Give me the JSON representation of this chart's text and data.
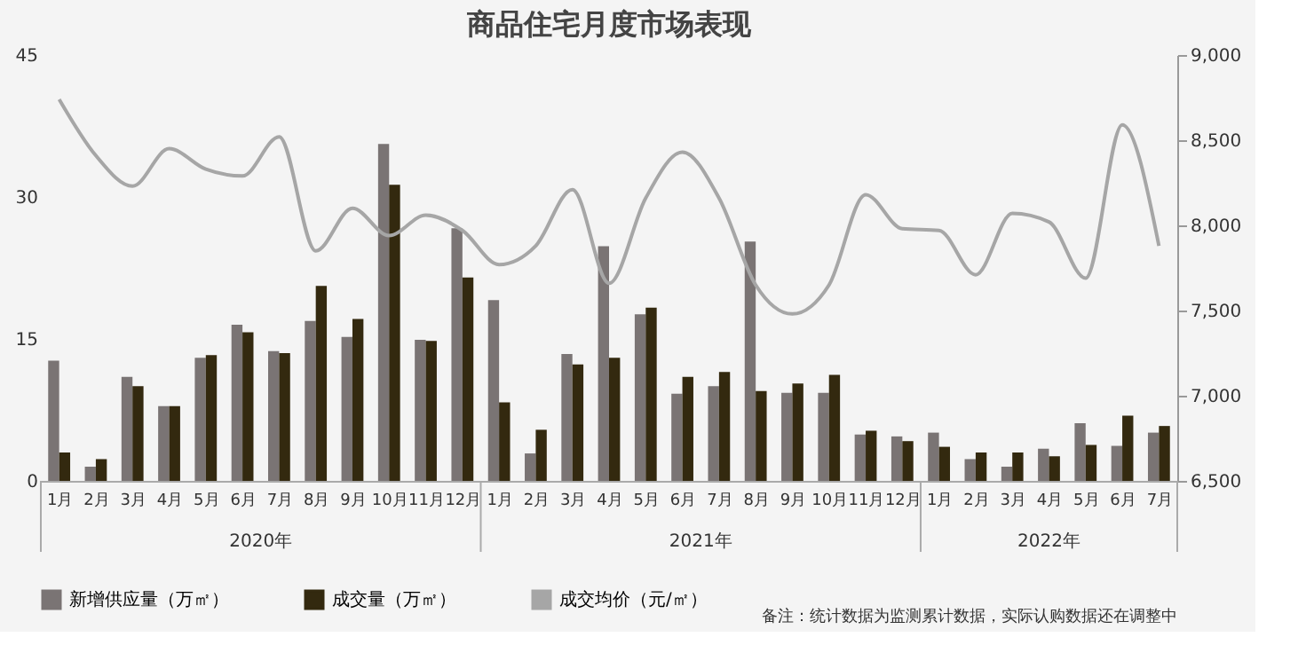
{
  "chart_data": {
    "type": "bar",
    "title": "商品住宅月度市场表现",
    "categories": [
      "1月",
      "2月",
      "3月",
      "4月",
      "5月",
      "6月",
      "7月",
      "8月",
      "9月",
      "10月",
      "11月",
      "12月",
      "1月",
      "2月",
      "3月",
      "4月",
      "5月",
      "6月",
      "7月",
      "8月",
      "9月",
      "10月",
      "11月",
      "12月",
      "1月",
      "2月",
      "3月",
      "4月",
      "5月",
      "6月",
      "7月"
    ],
    "series": [
      {
        "name": "新增供应量（万㎡）",
        "color": "#7a7474",
        "values": [
          12.7,
          1.5,
          11.0,
          7.9,
          13.0,
          16.5,
          13.7,
          16.9,
          15.2,
          35.6,
          14.9,
          26.7,
          19.1,
          2.9,
          13.4,
          24.8,
          17.6,
          9.2,
          10.0,
          25.3,
          9.3,
          9.3,
          4.9,
          4.7,
          5.1,
          2.3,
          1.5,
          3.4,
          6.1,
          3.7,
          5.1
        ]
      },
      {
        "name": "成交量（万㎡）",
        "color": "#33290f",
        "values": [
          3.0,
          2.3,
          10.0,
          7.9,
          13.3,
          15.7,
          13.5,
          20.6,
          17.1,
          31.3,
          14.8,
          21.5,
          8.3,
          5.4,
          12.3,
          13.0,
          18.3,
          11.0,
          11.5,
          9.5,
          10.3,
          11.2,
          5.3,
          4.2,
          3.6,
          3.0,
          3.0,
          2.6,
          3.8,
          6.9,
          5.8
        ]
      },
      {
        "name": "成交均价（元/㎡）",
        "type": "line",
        "axis": "y2",
        "color": "#a6a6a6",
        "values": [
          8740,
          8410,
          8230,
          8450,
          8330,
          8290,
          8520,
          7850,
          8100,
          7940,
          8060,
          7970,
          7770,
          7880,
          8210,
          7660,
          8160,
          8430,
          8160,
          7650,
          7480,
          7650,
          8180,
          7980,
          7970,
          7710,
          8070,
          8020,
          7690,
          8590,
          7880
        ]
      }
    ],
    "ylim": [
      0,
      45
    ],
    "yticks": [
      0,
      15,
      30,
      45
    ],
    "y2lim": [
      6500,
      9000
    ],
    "y2ticks": [
      {
        "value": 6500,
        "label": "6,500"
      },
      {
        "value": 7000,
        "label": "7,000"
      },
      {
        "value": 7500,
        "label": "7,500"
      },
      {
        "value": 8000,
        "label": "8,000"
      },
      {
        "value": 8500,
        "label": "8,500"
      },
      {
        "value": 9000,
        "label": "9,000"
      }
    ],
    "grid": false,
    "legend": "bottom",
    "annotations": [
      "2020年",
      "2021年",
      "2022年",
      "备注：统计数据为监测累计数据，实际认购数据还在调整中"
    ]
  }
}
